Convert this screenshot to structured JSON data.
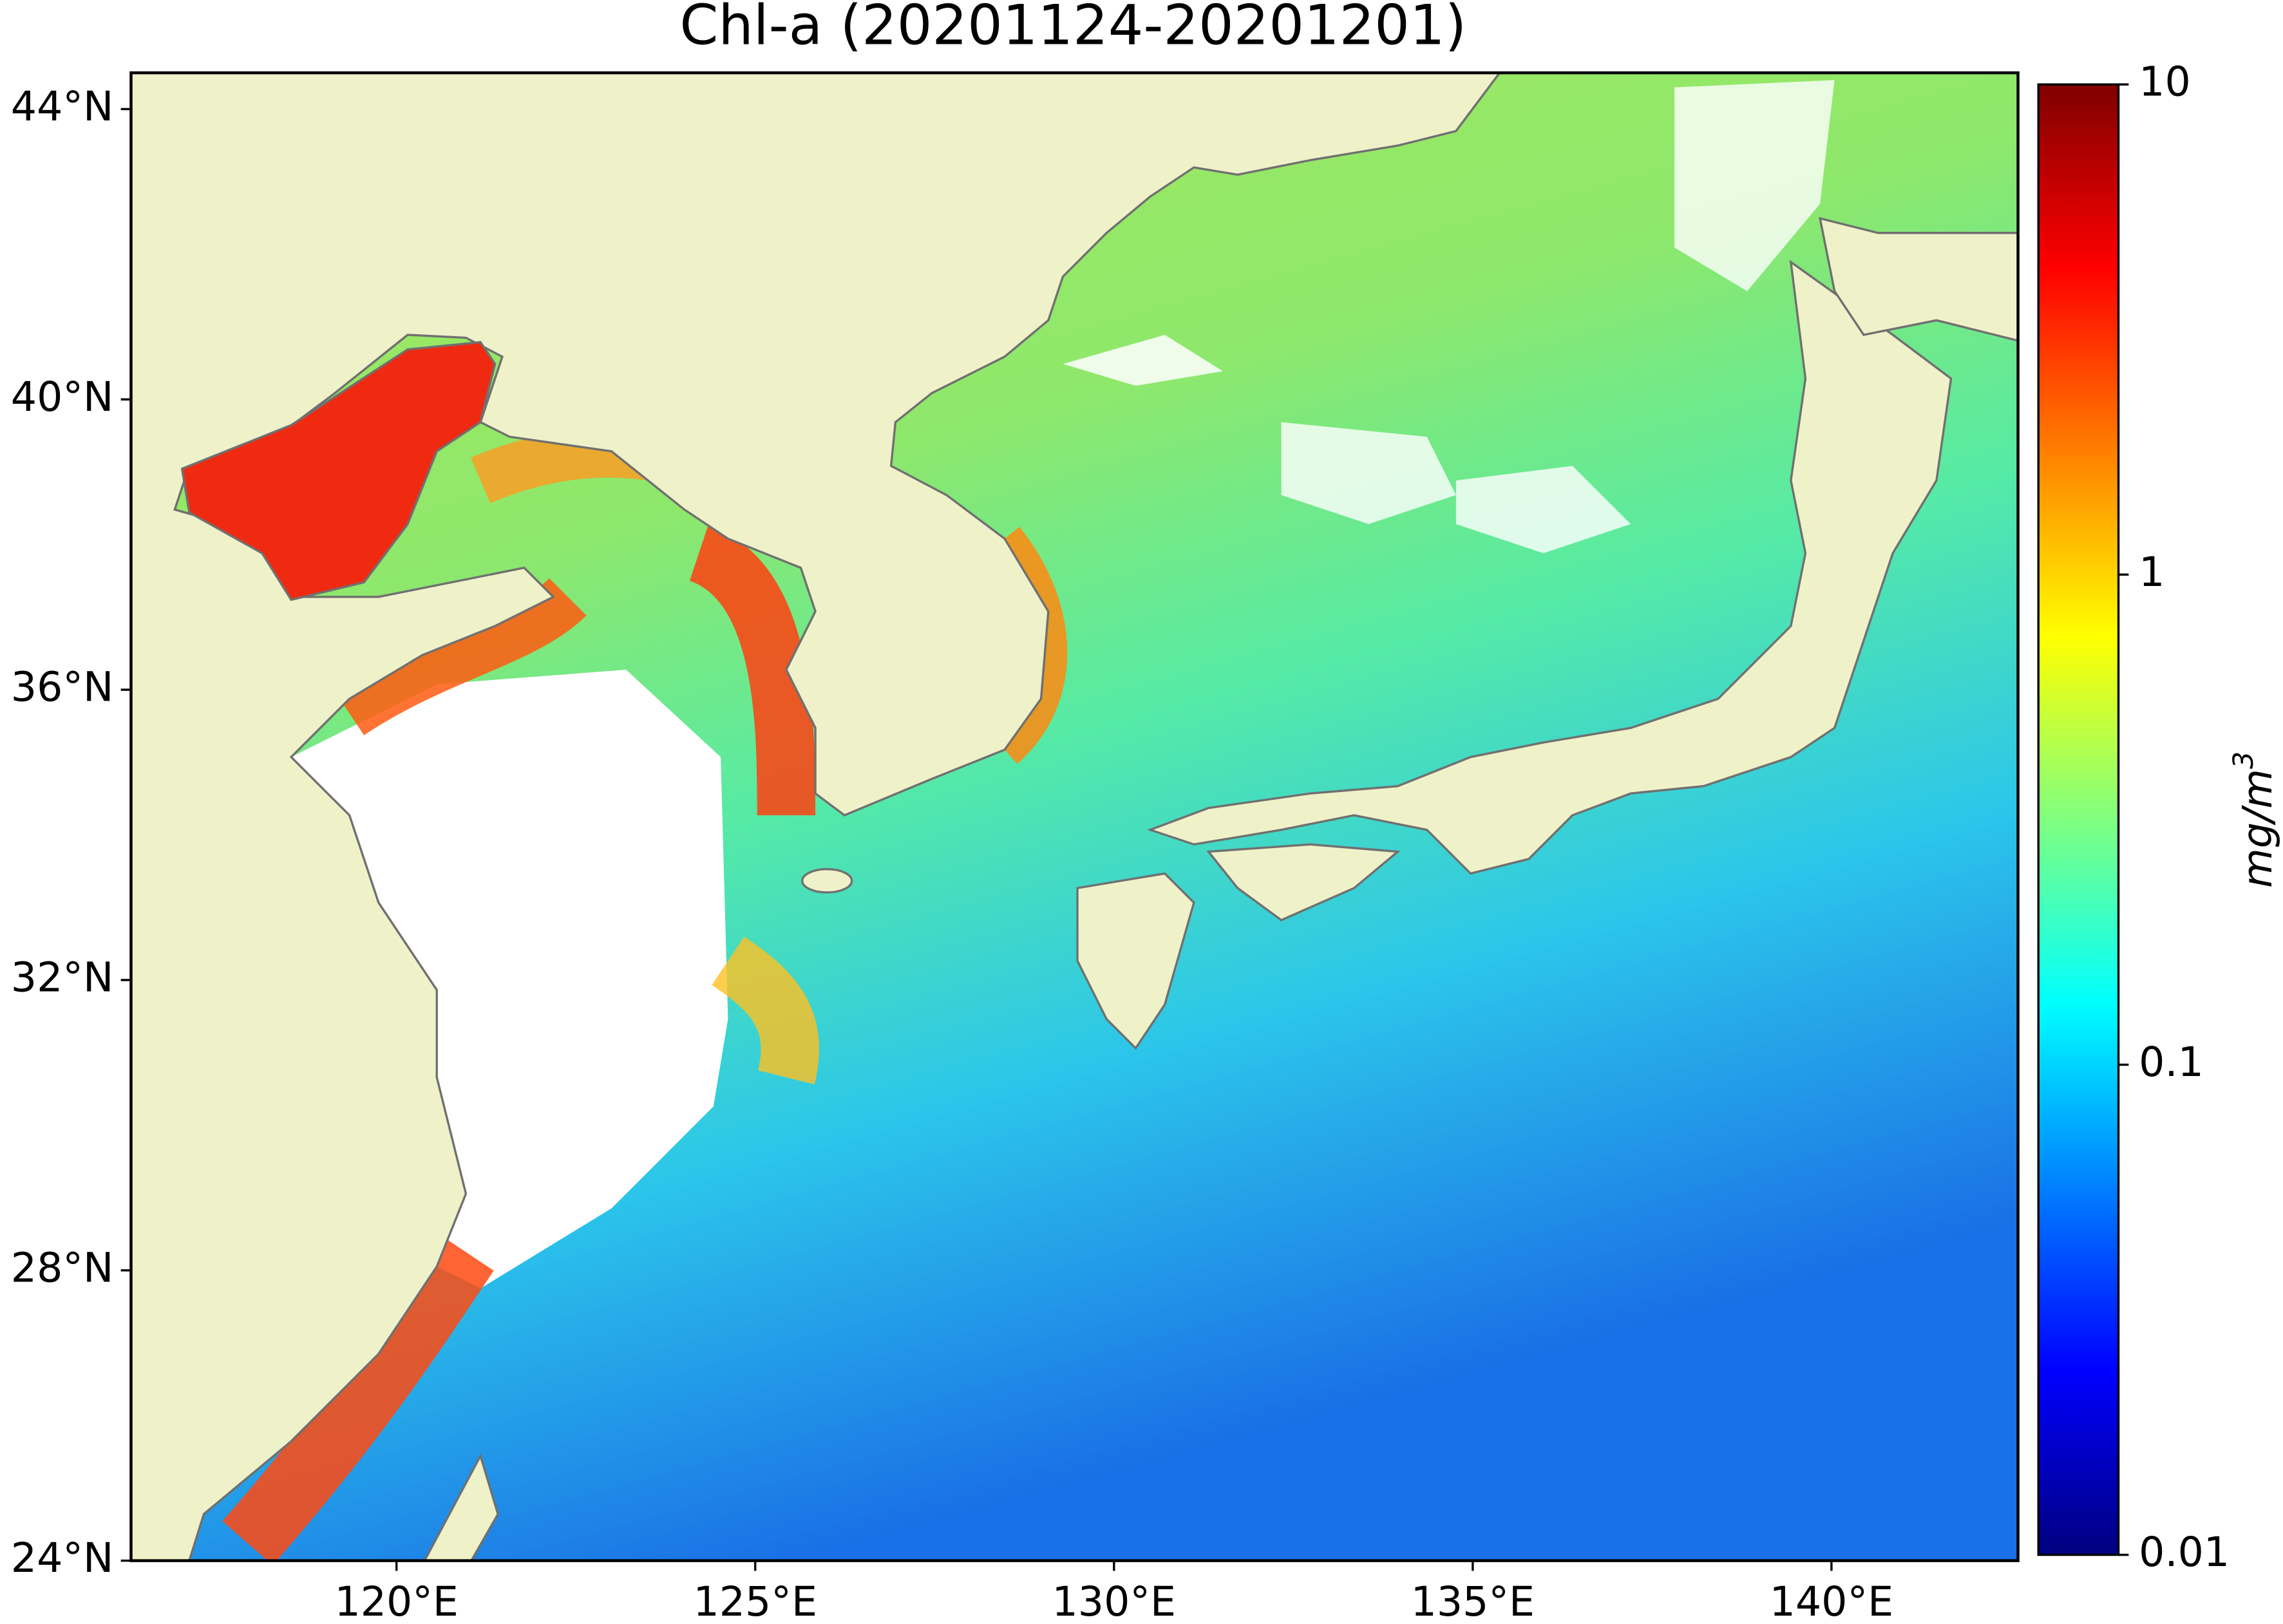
{
  "title": "Chl-a (20201124-20201201)",
  "map": {
    "xlim": [
      116.3,
      142.6
    ],
    "ylim": [
      24,
      44.5
    ],
    "lat_ticks": [
      {
        "value": 24,
        "label": "24°N"
      },
      {
        "value": 28,
        "label": "28°N"
      },
      {
        "value": 32,
        "label": "32°N"
      },
      {
        "value": 36,
        "label": "36°N"
      },
      {
        "value": 40,
        "label": "40°N"
      },
      {
        "value": 44,
        "label": "44°N"
      }
    ],
    "lon_ticks": [
      {
        "value": 120,
        "label": "120°E"
      },
      {
        "value": 125,
        "label": "125°E"
      },
      {
        "value": 130,
        "label": "130°E"
      },
      {
        "value": 135,
        "label": "135°E"
      },
      {
        "value": 140,
        "label": "140°E"
      }
    ]
  },
  "colorbar": {
    "log": true,
    "lim": [
      0.01,
      10
    ],
    "ticks": [
      0.01,
      0.1,
      1,
      10
    ],
    "label": {
      "base": "mg/m",
      "exponent": "3"
    }
  }
}
